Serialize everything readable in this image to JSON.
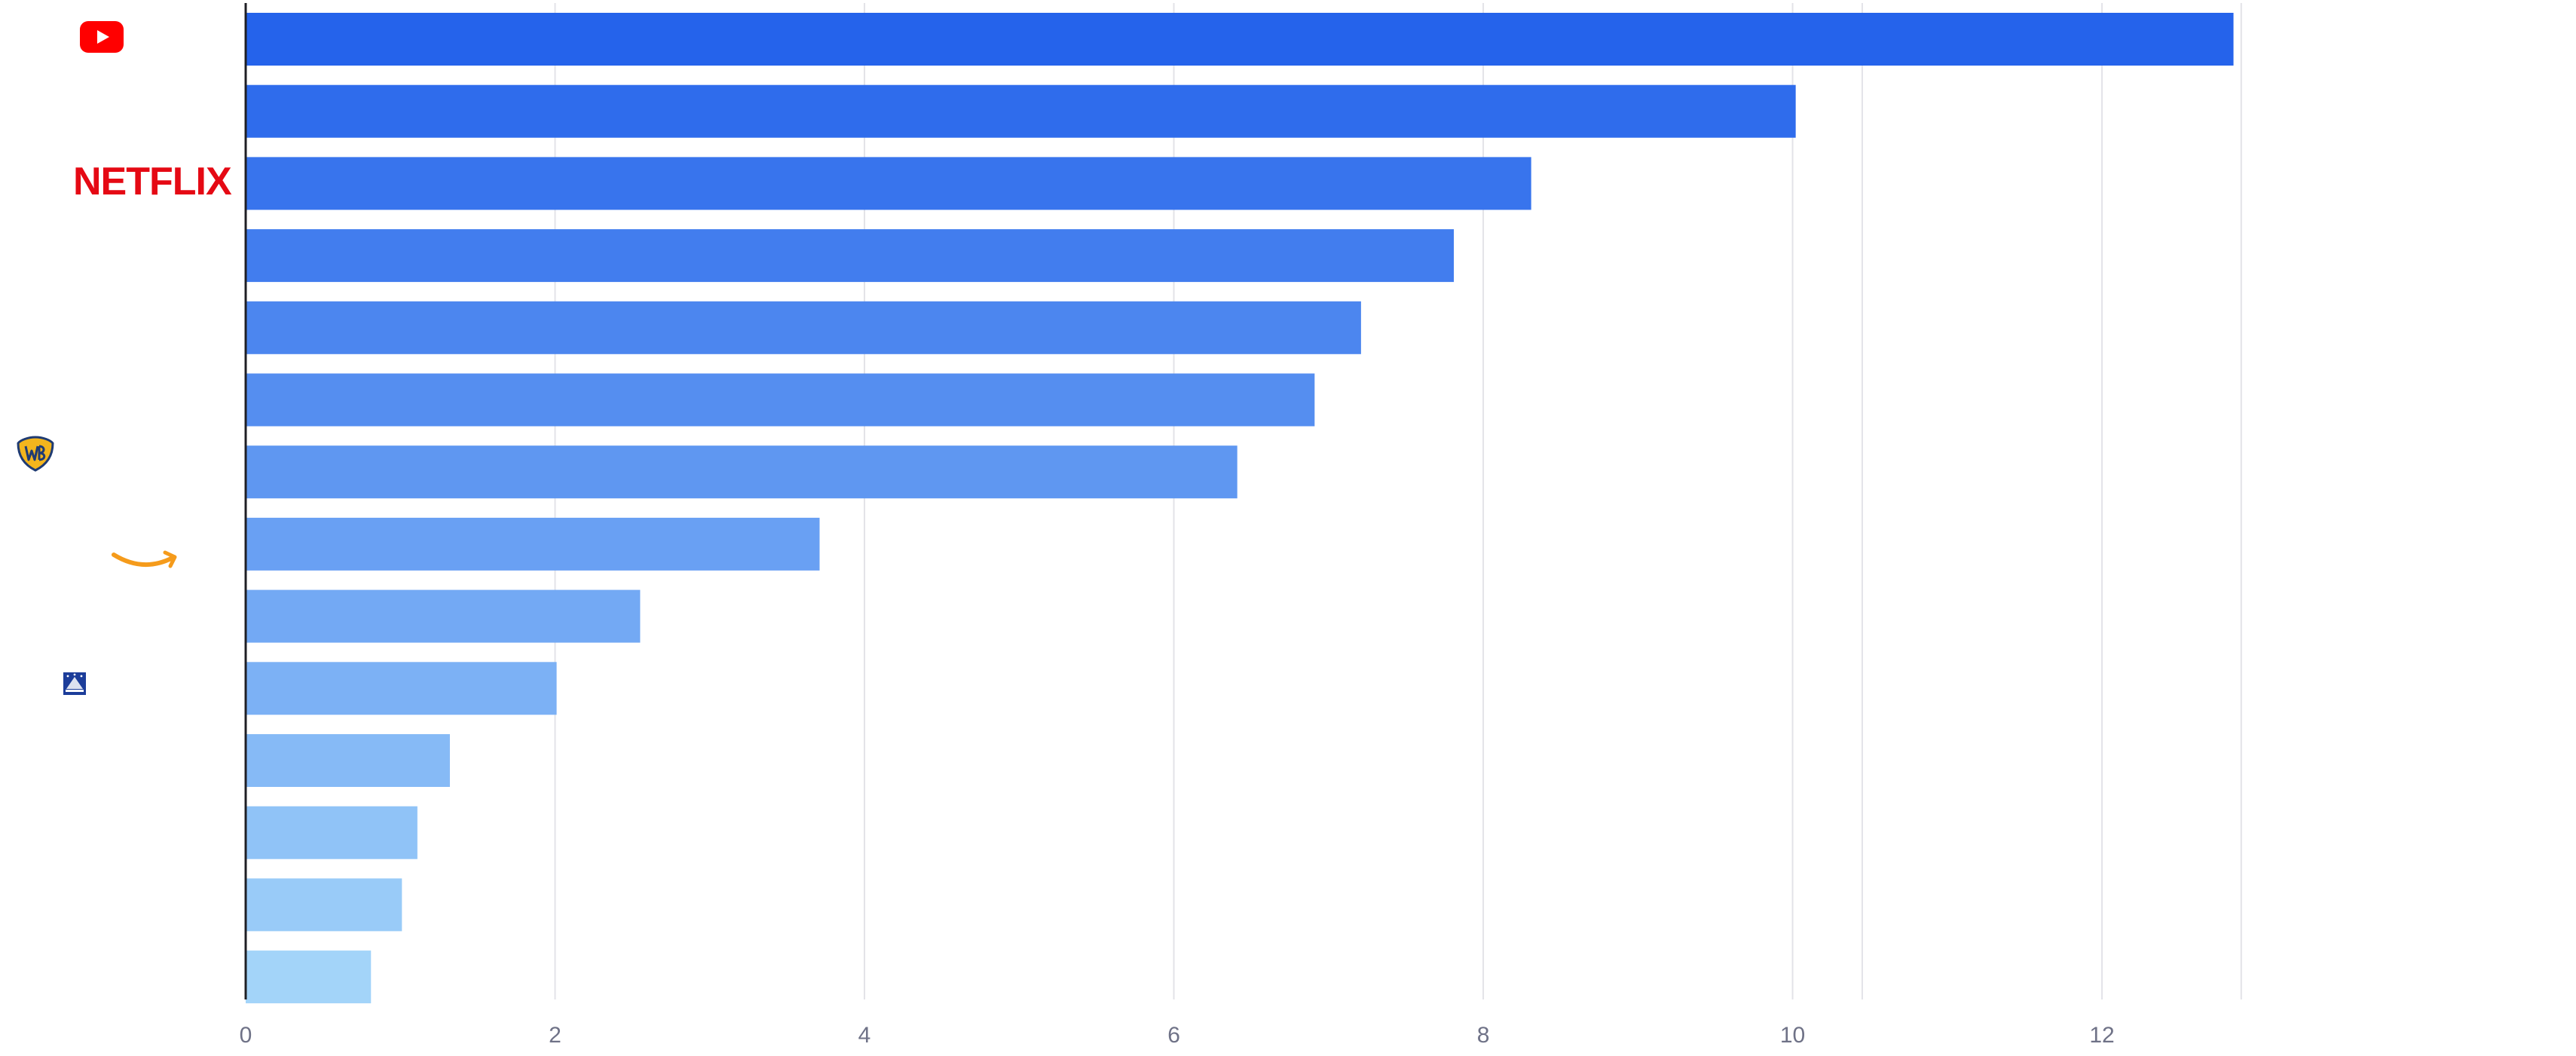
{
  "chart_data": {
    "type": "bar",
    "orientation": "horizontal",
    "categories": [
      "youtube-logo",
      "",
      "netflix-logo",
      "",
      "",
      "",
      "warner-bros-logo",
      "amazon-logo",
      "",
      "paramount-logo",
      "",
      "",
      "",
      ""
    ],
    "values": [
      12.85,
      10.02,
      8.31,
      7.81,
      7.21,
      6.91,
      6.41,
      3.71,
      2.55,
      2.01,
      1.32,
      1.11,
      1.01,
      0.81
    ],
    "xlim": [
      0,
      13.7
    ],
    "x_ticks": [
      0,
      2,
      4,
      6,
      8,
      10,
      12
    ],
    "title": "",
    "xlabel": "",
    "ylabel": "",
    "grid": "vertical",
    "bar_color_start": "#2563eb",
    "bar_color_end": "#a3d4f9",
    "logos": {
      "youtube": {
        "label": "",
        "color": "#ff0000"
      },
      "netflix": {
        "label": "NETFLIX",
        "color": "#e50914"
      },
      "warner_bros": {
        "label": "",
        "color": "#f3b51d"
      },
      "amazon": {
        "label": "",
        "color": "#f59b1b"
      },
      "paramount": {
        "label": "",
        "color": "#1c3d9a"
      }
    }
  }
}
